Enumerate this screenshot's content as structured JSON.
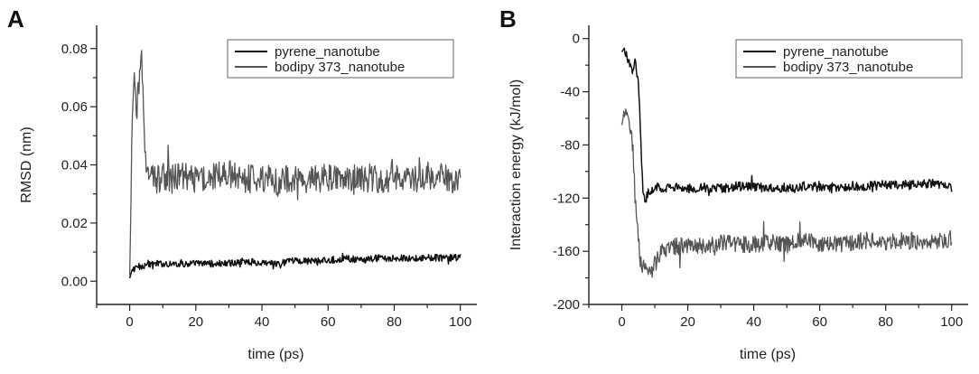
{
  "chart_data": [
    {
      "panel": "A",
      "type": "line",
      "xlabel": "time (ps)",
      "ylabel": "RMSD (nm)",
      "xlim": [
        -10,
        105
      ],
      "ylim": [
        -0.008,
        0.088
      ],
      "xticks": [
        0,
        20,
        40,
        60,
        80,
        100
      ],
      "yticks": [
        0.0,
        0.02,
        0.04,
        0.06,
        0.08
      ],
      "ytick_labels": [
        "0.00",
        "0.02",
        "0.04",
        "0.06",
        "0.08"
      ],
      "legend_position": "top-right",
      "series": [
        {
          "name": "pyrene_nanotube",
          "color": "#111111",
          "x": [
            0,
            0.5,
            1,
            2,
            3,
            4,
            5,
            10,
            15,
            20,
            25,
            30,
            35,
            40,
            45,
            50,
            55,
            60,
            65,
            70,
            75,
            80,
            85,
            90,
            95,
            100
          ],
          "y": [
            0.001,
            0.003,
            0.004,
            0.005,
            0.005,
            0.005,
            0.006,
            0.006,
            0.006,
            0.006,
            0.006,
            0.006,
            0.007,
            0.006,
            0.006,
            0.007,
            0.007,
            0.007,
            0.008,
            0.007,
            0.008,
            0.008,
            0.008,
            0.008,
            0.008,
            0.008
          ]
        },
        {
          "name": "bodipy 373_nanotube",
          "color": "#555555",
          "x": [
            0,
            0.3,
            0.6,
            1,
            1.5,
            2,
            2.5,
            3,
            3.5,
            4,
            4.5,
            5,
            6,
            8,
            10,
            15,
            20,
            25,
            30,
            35,
            40,
            45,
            50,
            55,
            60,
            65,
            70,
            75,
            80,
            85,
            90,
            95,
            100
          ],
          "y": [
            0.002,
            0.02,
            0.045,
            0.062,
            0.068,
            0.058,
            0.064,
            0.07,
            0.078,
            0.062,
            0.048,
            0.04,
            0.036,
            0.035,
            0.036,
            0.036,
            0.035,
            0.036,
            0.037,
            0.035,
            0.036,
            0.034,
            0.036,
            0.035,
            0.036,
            0.035,
            0.036,
            0.035,
            0.036,
            0.035,
            0.036,
            0.036,
            0.034
          ]
        }
      ]
    },
    {
      "panel": "B",
      "type": "line",
      "xlabel": "time (ps)",
      "ylabel": "Interaction energy (kJ/mol)",
      "xlim": [
        -10,
        105
      ],
      "ylim": [
        -200,
        10
      ],
      "xticks": [
        0,
        20,
        40,
        60,
        80,
        100
      ],
      "yticks": [
        0,
        -40,
        -80,
        -120,
        -160,
        -200
      ],
      "ytick_labels": [
        "0",
        "-40",
        "-80",
        "-120",
        "-160",
        "-200"
      ],
      "legend_position": "top-right",
      "series": [
        {
          "name": "pyrene_nanotube",
          "color": "#111111",
          "x": [
            0,
            0.5,
            1,
            1.5,
            2,
            3,
            4,
            5,
            5.5,
            6,
            6.5,
            7,
            8,
            10,
            15,
            20,
            25,
            30,
            35,
            40,
            45,
            50,
            55,
            60,
            65,
            70,
            75,
            80,
            85,
            90,
            95,
            100
          ],
          "y": [
            -10,
            -8,
            -12,
            -10,
            -18,
            -25,
            -18,
            -30,
            -60,
            -95,
            -118,
            -122,
            -116,
            -112,
            -112,
            -113,
            -112,
            -113,
            -111,
            -112,
            -112,
            -112,
            -111,
            -111,
            -112,
            -111,
            -111,
            -110,
            -110,
            -110,
            -109,
            -112
          ]
        },
        {
          "name": "bodipy 373_nanotube",
          "color": "#555555",
          "x": [
            0,
            0.5,
            1,
            2,
            3,
            3.5,
            4,
            4.5,
            5,
            5.5,
            6,
            7,
            8,
            10,
            12,
            15,
            20,
            25,
            30,
            35,
            40,
            45,
            50,
            55,
            60,
            65,
            70,
            75,
            80,
            85,
            90,
            95,
            100
          ],
          "y": [
            -65,
            -58,
            -52,
            -60,
            -70,
            -90,
            -120,
            -135,
            -150,
            -165,
            -170,
            -175,
            -178,
            -170,
            -158,
            -157,
            -155,
            -156,
            -154,
            -155,
            -155,
            -153,
            -155,
            -152,
            -154,
            -155,
            -153,
            -152,
            -154,
            -152,
            -153,
            -152,
            -150
          ]
        }
      ]
    }
  ]
}
